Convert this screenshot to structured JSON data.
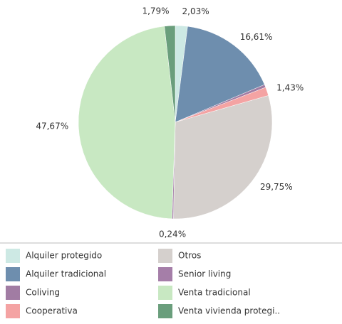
{
  "chart_data": {
    "type": "pie",
    "categories": [
      "Alquiler protegido",
      "Alquiler tradicional",
      "Coliving",
      "Cooperativa",
      "Otros",
      "Senior living",
      "Venta tradicional",
      "Venta vivienda protegi.."
    ],
    "values": [
      2.03,
      16.61,
      0.48,
      1.43,
      29.75,
      0.24,
      47.67,
      1.79
    ],
    "value_labels": [
      "2,03%",
      "16,61%",
      null,
      "1,43%",
      "29,75%",
      "0,24%",
      "47,67%",
      "1,79%"
    ],
    "colors": [
      "#cde9e4",
      "#6e8eae",
      "#a17ca3",
      "#f4a3a3",
      "#d5d0cd",
      "#a57ea8",
      "#c8e8c2",
      "#6a9e7c"
    ]
  }
}
